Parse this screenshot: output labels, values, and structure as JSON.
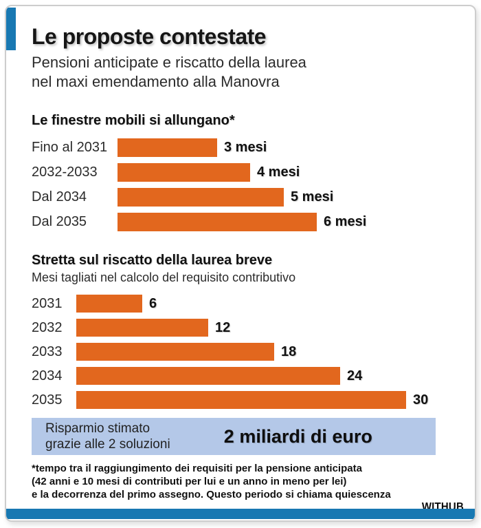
{
  "colors": {
    "accent_blue": "#1878B2",
    "bar_orange": "#E2671E",
    "summary_box_blue": "#B4C8E8",
    "text_dark": "#161616"
  },
  "header": {
    "title": "Le proposte contestate",
    "subtitle_line1": "Pensioni anticipate e riscatto della laurea",
    "subtitle_line2": "nel maxi emendamento alla Manovra"
  },
  "chart_data": [
    {
      "type": "bar",
      "orientation": "horizontal",
      "title": "Le finestre mobili si allungano*",
      "categories": [
        "Fino al 2031",
        "2032-2033",
        "Dal 2034",
        "Dal 2035"
      ],
      "values": [
        3,
        4,
        5,
        6
      ],
      "value_labels": [
        "3 mesi",
        "4 mesi",
        "5 mesi",
        "6 mesi"
      ],
      "unit": "mesi",
      "xlim": [
        0,
        6
      ],
      "grid": false,
      "legend": "none"
    },
    {
      "type": "bar",
      "orientation": "horizontal",
      "title": "Stretta sul riscatto della laurea breve",
      "subtitle": "Mesi tagliati nel calcolo del requisito contributivo",
      "categories": [
        "2031",
        "2032",
        "2033",
        "2034",
        "2035"
      ],
      "values": [
        6,
        12,
        18,
        24,
        30
      ],
      "value_labels": [
        "6",
        "12",
        "18",
        "24",
        "30"
      ],
      "unit": "mesi tagliati",
      "xlim": [
        0,
        30
      ],
      "grid": false,
      "legend": "none"
    }
  ],
  "summary_box": {
    "label_line1": "Risparmio stimato",
    "label_line2": "grazie alle 2 soluzioni",
    "value": "2 miliardi di euro"
  },
  "footnote": {
    "line1": "*tempo tra il raggiungimento dei requisiti per la pensione anticipata",
    "line2": "(42 anni e 10 mesi di contributi per lui e un anno in meno per lei)",
    "line3": "e la decorrenza del primo assegno. Questo periodo si chiama quiescenza"
  },
  "branding": {
    "logo": "WITHUB"
  }
}
